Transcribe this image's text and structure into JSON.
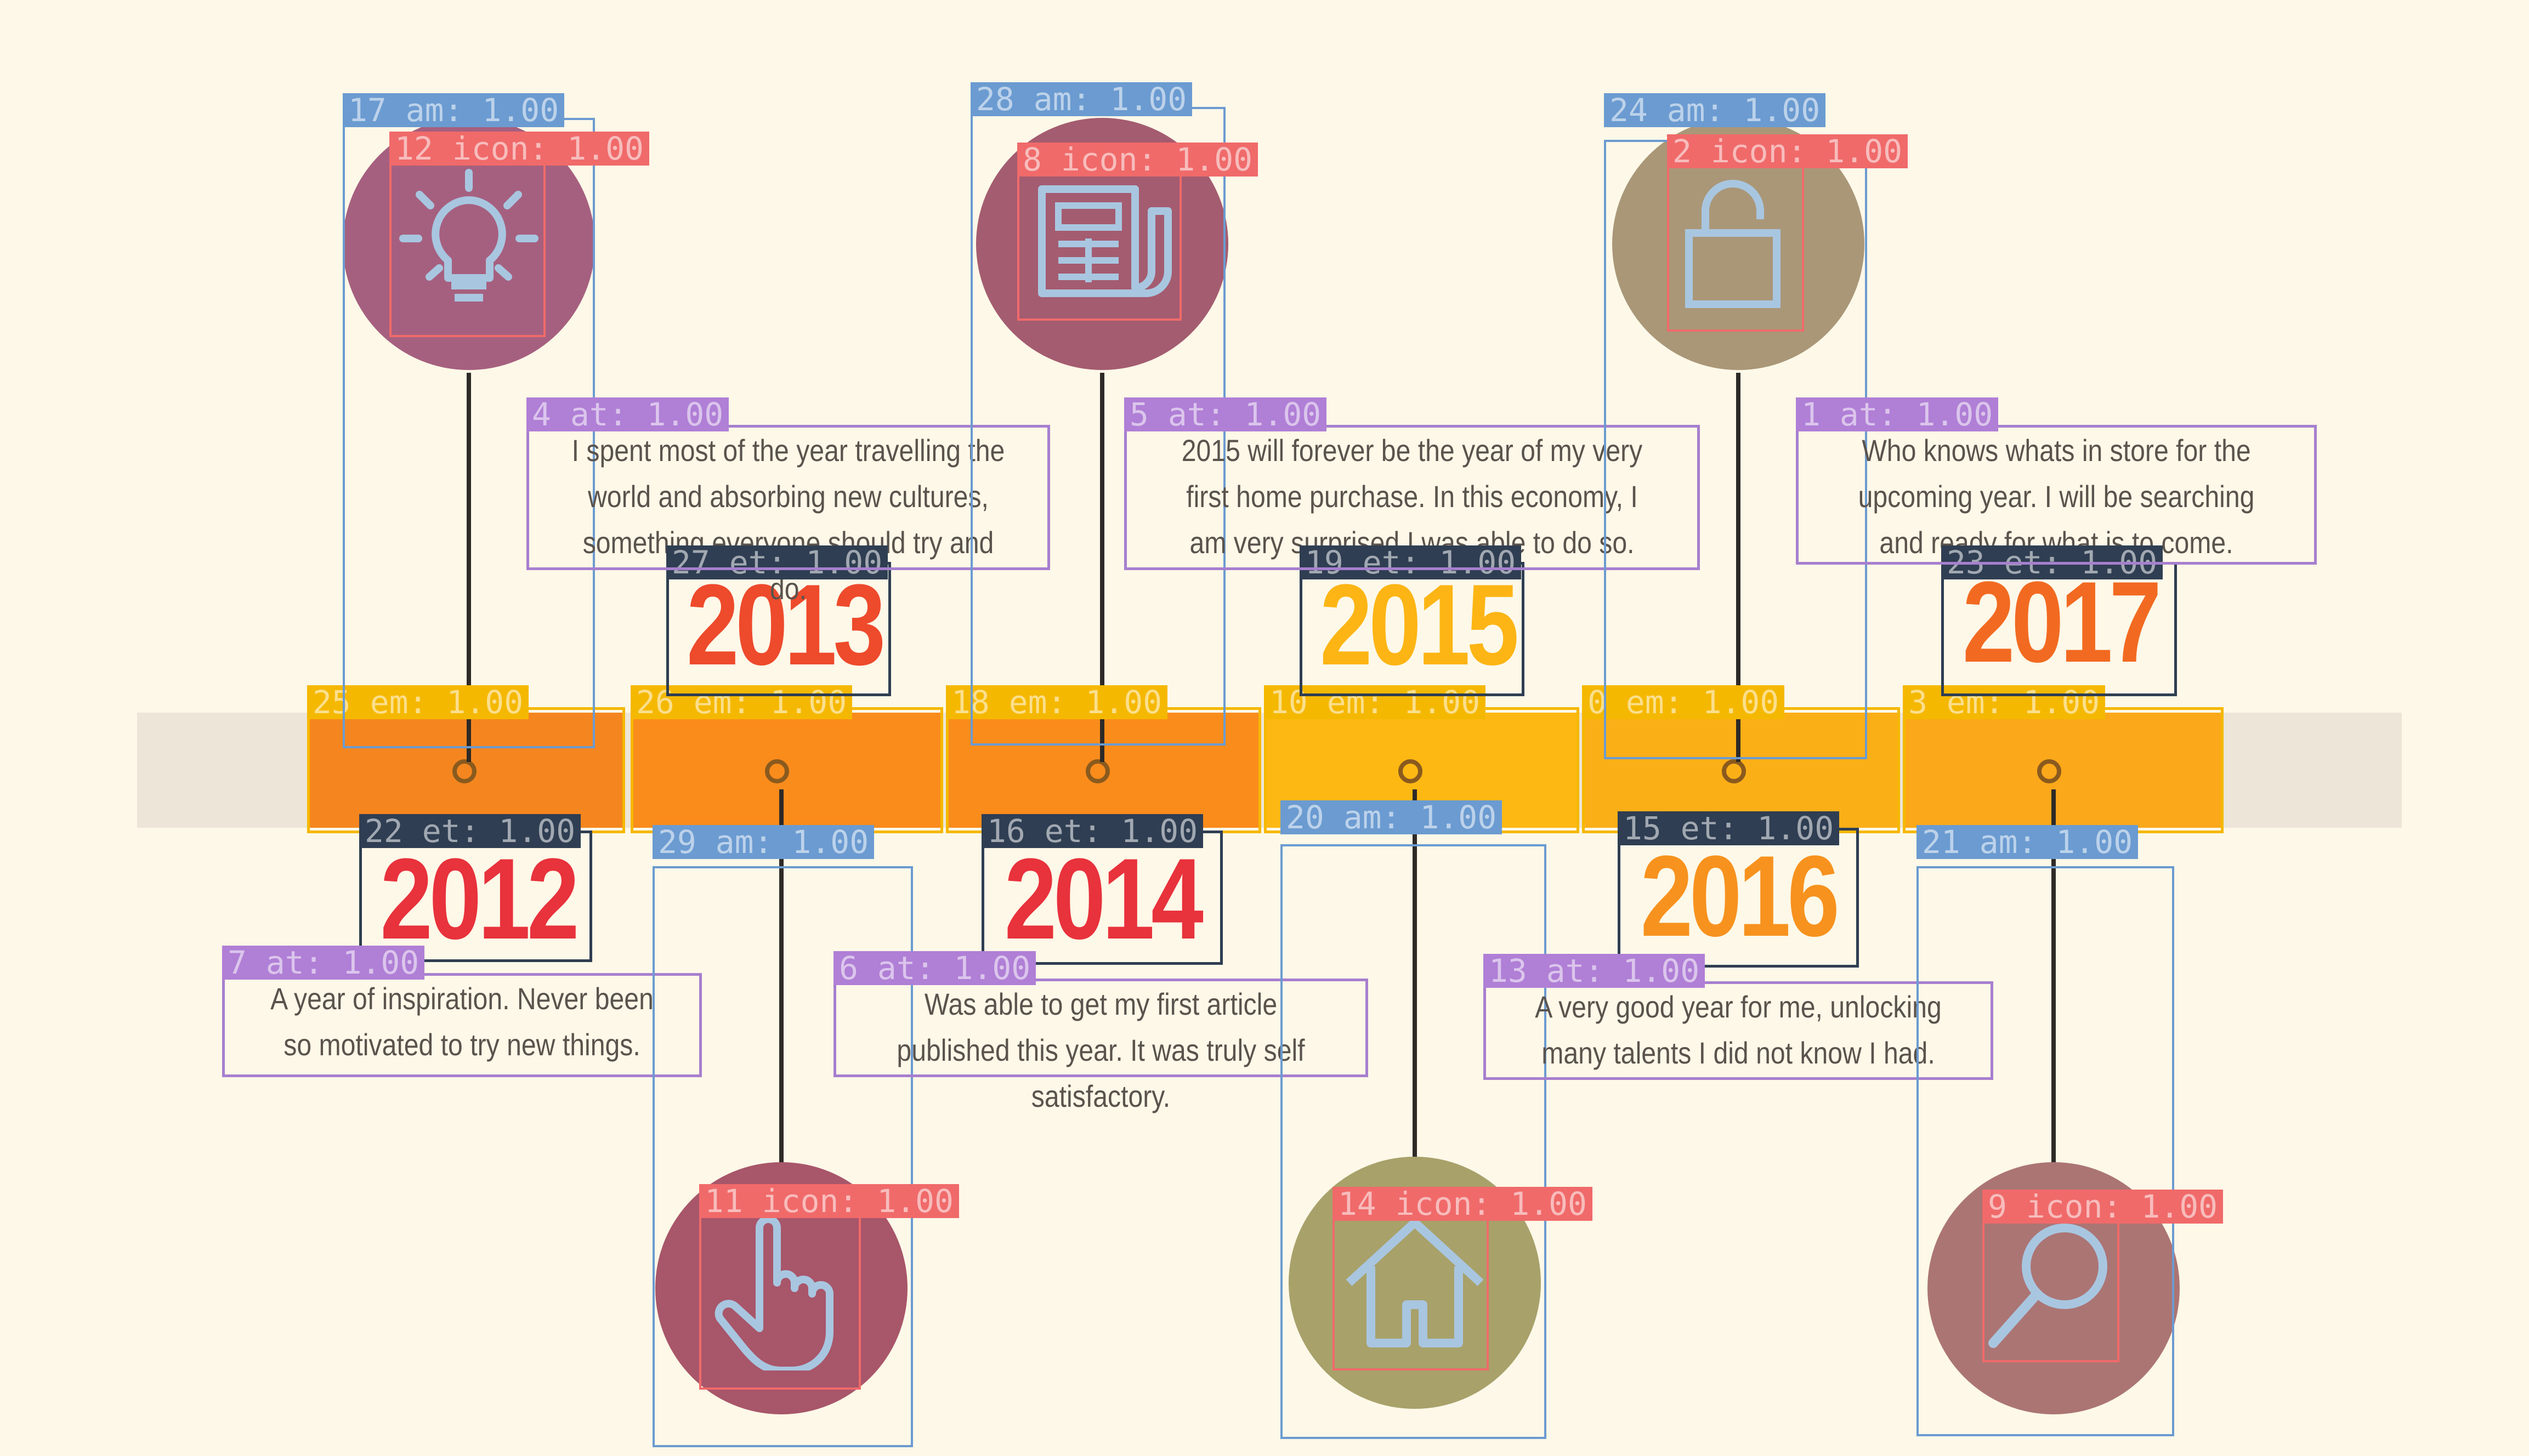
{
  "milestones": [
    {
      "year": "2012",
      "year_color": "#e8323c",
      "text": "A year of inspiration.  Never been so motivated to try new things.",
      "icon": "lightbulb-icon",
      "bubble": "#a6607f",
      "seg": "#f5861f"
    },
    {
      "year": "2013",
      "year_color": "#ee4a2c",
      "text": "I spent most of the year travelling the world and absorbing new cultures, something everyone should try and do.",
      "icon": "pointer-hand-icon",
      "bubble": "#a8566a",
      "seg": "#fa8c1c"
    },
    {
      "year": "2014",
      "year_color": "#e8323c",
      "text": "Was able to get my first article published this year.  It was truly self satisfactory.",
      "icon": "newspaper-icon",
      "bubble": "#a45c70",
      "seg": "#fa8c1c"
    },
    {
      "year": "2015",
      "year_color": "#fcb514",
      "text": "2015 will forever be the year of my very first home purchase.  In this economy, I am very surprised I was able to do so.",
      "icon": "home-icon",
      "bubble": "#a8a16a",
      "seg": "#fdb813"
    },
    {
      "year": "2016",
      "year_color": "#f7921e",
      "text": "A very good year for me, unlocking many talents I did not know I had.",
      "icon": "unlock-icon",
      "bubble": "#aa9778",
      "seg": "#fbaf17"
    },
    {
      "year": "2017",
      "year_color": "#f26a21",
      "text": "Who knows whats in store for the upcoming year. I will be searching and ready for what is to come.",
      "icon": "search-icon",
      "bubble": "#ab7574",
      "seg": "#fba81a"
    }
  ],
  "annotations": {
    "texts": [
      "7 at: 1.00",
      "4 at: 1.00",
      "6 at: 1.00",
      "5 at: 1.00",
      "13 at: 1.00",
      "1 at: 1.00"
    ],
    "years": [
      "22 et: 1.00",
      "27 et: 1.00",
      "16 et: 1.00",
      "19 et: 1.00",
      "15 et: 1.00",
      "23 et: 1.00"
    ],
    "bands": [
      "25 em: 1.00",
      "26 em: 1.00",
      "18 em: 1.00",
      "10 em: 1.00",
      "0 em: 1.00",
      "3 em: 1.00"
    ],
    "boxes": [
      "17 am: 1.00",
      "29 am: 1.00",
      "28 am: 1.00",
      "20 am: 1.00",
      "24 am: 1.00",
      "21 am: 1.00"
    ],
    "icons": [
      "12 icon: 1.00",
      "11 icon: 1.00",
      "8 icon: 1.00",
      "14 icon: 1.00",
      "2 icon: 1.00",
      "9 icon: 1.00"
    ]
  },
  "colors": {
    "background": "#fdf8e8",
    "band": "#ede5d8",
    "icon_stroke": "#a9c6e0",
    "description_text": "#5a534d"
  }
}
